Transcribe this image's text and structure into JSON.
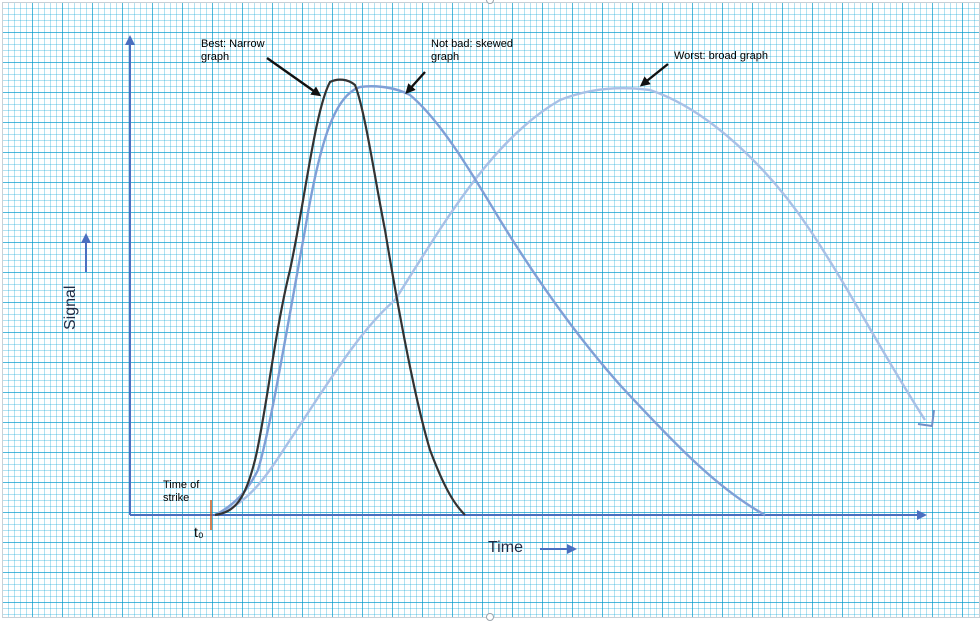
{
  "labels": {
    "best": "Best: Narrow\ngraph",
    "not_bad": "Not bad: skewed\ngraph",
    "worst": "Worst: broad graph",
    "time_of_strike": "Time of\nstrike",
    "t0": "t₀",
    "x_axis": "Time",
    "y_axis": "Signal"
  },
  "colors": {
    "axis": "#4a6fc0",
    "narrow_curve": "#333333",
    "skewed_curve": "#7f9fd6",
    "broad_curve": "#a8c0e6",
    "t0_marker": "#c85a1e",
    "grid": "#00a0d2"
  }
}
